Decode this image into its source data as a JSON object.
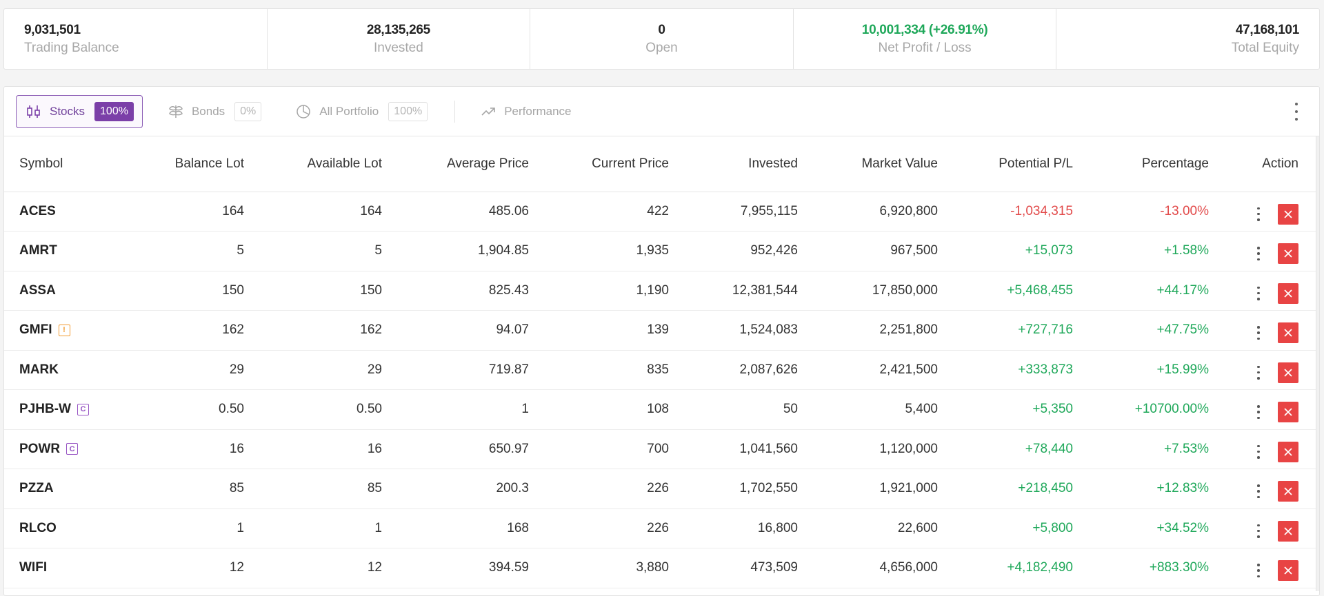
{
  "summary": [
    {
      "value": "9,031,501",
      "label": "Trading Balance",
      "align": "left",
      "color": "default"
    },
    {
      "value": "28,135,265",
      "label": "Invested",
      "align": "center",
      "color": "default"
    },
    {
      "value": "0",
      "label": "Open",
      "align": "center",
      "color": "default"
    },
    {
      "value": "10,001,334 (+26.91%)",
      "label": "Net Profit / Loss",
      "align": "center",
      "color": "green"
    },
    {
      "value": "47,168,101",
      "label": "Total Equity",
      "align": "right",
      "color": "default"
    }
  ],
  "tabs": {
    "stocks": {
      "label": "Stocks",
      "pct": "100%",
      "icon": "candlestick-icon"
    },
    "bonds": {
      "label": "Bonds",
      "pct": "0%",
      "icon": "bonds-icon"
    },
    "all_portfolio": {
      "label": "All Portfolio",
      "pct": "100%",
      "icon": "pie-chart-icon"
    },
    "performance": {
      "label": "Performance",
      "icon": "trend-up-icon"
    }
  },
  "table": {
    "headers": {
      "symbol": "Symbol",
      "balance_lot": "Balance Lot",
      "available_lot": "Available Lot",
      "average_price": "Average Price",
      "current_price": "Current Price",
      "invested": "Invested",
      "market_value": "Market Value",
      "potential_pl": "Potential P/L",
      "percentage": "Percentage",
      "action": "Action"
    },
    "rows": [
      {
        "symbol": "ACES",
        "badge": "",
        "balance_lot": "164",
        "available_lot": "164",
        "average_price": "485.06",
        "current_price": "422",
        "invested": "7,955,115",
        "market_value": "6,920,800",
        "potential_pl": "-1,034,315",
        "percentage": "-13.00%",
        "trend": "red"
      },
      {
        "symbol": "AMRT",
        "badge": "",
        "balance_lot": "5",
        "available_lot": "5",
        "average_price": "1,904.85",
        "current_price": "1,935",
        "invested": "952,426",
        "market_value": "967,500",
        "potential_pl": "+15,073",
        "percentage": "+1.58%",
        "trend": "green"
      },
      {
        "symbol": "ASSA",
        "badge": "",
        "balance_lot": "150",
        "available_lot": "150",
        "average_price": "825.43",
        "current_price": "1,190",
        "invested": "12,381,544",
        "market_value": "17,850,000",
        "potential_pl": "+5,468,455",
        "percentage": "+44.17%",
        "trend": "green"
      },
      {
        "symbol": "GMFI",
        "badge": "!",
        "badge_type": "warn",
        "balance_lot": "162",
        "available_lot": "162",
        "average_price": "94.07",
        "current_price": "139",
        "invested": "1,524,083",
        "market_value": "2,251,800",
        "potential_pl": "+727,716",
        "percentage": "+47.75%",
        "trend": "green"
      },
      {
        "symbol": "MARK",
        "badge": "",
        "balance_lot": "29",
        "available_lot": "29",
        "average_price": "719.87",
        "current_price": "835",
        "invested": "2,087,626",
        "market_value": "2,421,500",
        "potential_pl": "+333,873",
        "percentage": "+15.99%",
        "trend": "green"
      },
      {
        "symbol": "PJHB-W",
        "badge": "C",
        "badge_type": "corp",
        "balance_lot": "0.50",
        "available_lot": "0.50",
        "average_price": "1",
        "current_price": "108",
        "invested": "50",
        "market_value": "5,400",
        "potential_pl": "+5,350",
        "percentage": "+10700.00%",
        "trend": "green"
      },
      {
        "symbol": "POWR",
        "badge": "C",
        "badge_type": "corp",
        "balance_lot": "16",
        "available_lot": "16",
        "average_price": "650.97",
        "current_price": "700",
        "invested": "1,041,560",
        "market_value": "1,120,000",
        "potential_pl": "+78,440",
        "percentage": "+7.53%",
        "trend": "green"
      },
      {
        "symbol": "PZZA",
        "badge": "",
        "balance_lot": "85",
        "available_lot": "85",
        "average_price": "200.3",
        "current_price": "226",
        "invested": "1,702,550",
        "market_value": "1,921,000",
        "potential_pl": "+218,450",
        "percentage": "+12.83%",
        "trend": "green"
      },
      {
        "symbol": "RLCO",
        "badge": "",
        "balance_lot": "1",
        "available_lot": "1",
        "average_price": "168",
        "current_price": "226",
        "invested": "16,800",
        "market_value": "22,600",
        "potential_pl": "+5,800",
        "percentage": "+34.52%",
        "trend": "green"
      },
      {
        "symbol": "WIFI",
        "badge": "",
        "balance_lot": "12",
        "available_lot": "12",
        "average_price": "394.59",
        "current_price": "3,880",
        "invested": "473,509",
        "market_value": "4,656,000",
        "potential_pl": "+4,182,490",
        "percentage": "+883.30%",
        "trend": "green"
      }
    ]
  },
  "colors": {
    "accent": "#7b3fa8",
    "positive": "#1fa85a",
    "negative": "#e24b4b",
    "close_button": "#e84444",
    "warn_badge": "#f29a2e"
  }
}
